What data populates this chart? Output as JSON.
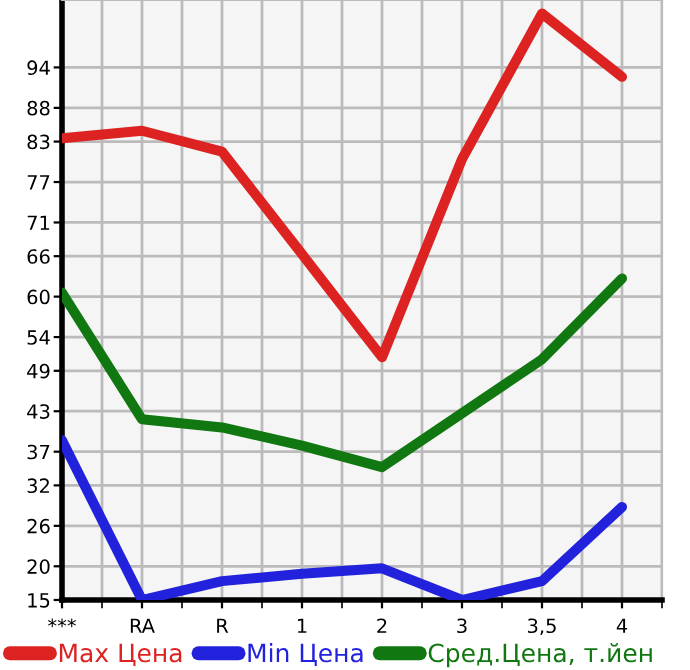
{
  "chart_data": {
    "type": "line",
    "categories": [
      "***",
      "RA",
      "R",
      "1",
      "2",
      "3",
      "3,5",
      "4"
    ],
    "series": [
      {
        "name": "Max Цена",
        "color": "#dd2222",
        "values": [
          83.5,
          84.6,
          81.5,
          66.3,
          51.0,
          80.4,
          102,
          92.6
        ]
      },
      {
        "name": "Min Цена",
        "color": "#2222dd",
        "values": [
          38.7,
          15,
          17.8,
          18.9,
          19.7,
          15,
          17.8,
          28.8
        ]
      },
      {
        "name": "Сред.Цена, т.йен",
        "color": "#117711",
        "values": [
          60.6,
          41.8,
          40.6,
          37.9,
          34.7,
          42.7,
          50.7,
          62.7
        ]
      }
    ],
    "ylim": [
      15,
      104
    ],
    "yticks": [
      15,
      20,
      26,
      32,
      37,
      43,
      49,
      54,
      60,
      66,
      71,
      77,
      83,
      88,
      94
    ],
    "grid": true,
    "legend": "bottom",
    "marker": "none",
    "line_style": "solid"
  }
}
